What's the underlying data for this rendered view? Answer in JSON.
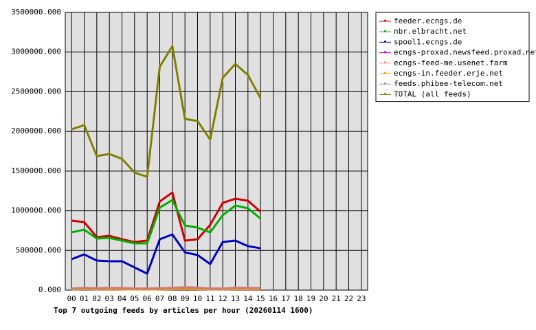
{
  "chart_data": {
    "type": "line",
    "title": "Top 7 outgoing feeds by articles per hour (20260114 1600)",
    "categories": [
      "00",
      "01",
      "02",
      "03",
      "04",
      "05",
      "06",
      "07",
      "08",
      "09",
      "10",
      "11",
      "12",
      "13",
      "14",
      "15",
      "16",
      "17",
      "18",
      "19",
      "20",
      "21",
      "22",
      "23"
    ],
    "ylim": [
      0,
      3500000
    ],
    "yticks": [
      {
        "value": 0,
        "label": "0.000"
      },
      {
        "value": 500000,
        "label": "500000.000"
      },
      {
        "value": 1000000,
        "label": "1000000.000"
      },
      {
        "value": 1500000,
        "label": "1500000.000"
      },
      {
        "value": 2000000,
        "label": "2000000.000"
      },
      {
        "value": 2500000,
        "label": "2500000.000"
      },
      {
        "value": 3000000,
        "label": "3000000.000"
      },
      {
        "value": 3500000,
        "label": "3500000.000"
      }
    ],
    "grid": true,
    "legend": "right",
    "series": [
      {
        "name": "feeder.ecngs.de",
        "color": "#cc0000",
        "values": [
          875000,
          858000,
          667000,
          684000,
          641000,
          606000,
          624000,
          1117000,
          1230000,
          624000,
          641000,
          823000,
          1100000,
          1152000,
          1126000,
          988000,
          null,
          null,
          null,
          null,
          null,
          null,
          null,
          null
        ]
      },
      {
        "name": "nbr.elbracht.net",
        "color": "#00b000",
        "values": [
          728000,
          762000,
          650000,
          658000,
          624000,
          589000,
          589000,
          1040000,
          1135000,
          814000,
          788000,
          728000,
          944000,
          1066000,
          1031000,
          901000,
          null,
          null,
          null,
          null,
          null,
          null,
          null,
          null
        ]
      },
      {
        "name": "spool1.ecngs.de",
        "color": "#0000c0",
        "values": [
          390000,
          450000,
          372000,
          364000,
          364000,
          286000,
          208000,
          641000,
          702000,
          476000,
          442000,
          329000,
          606000,
          624000,
          554000,
          528000,
          null,
          null,
          null,
          null,
          null,
          null,
          null,
          null
        ]
      },
      {
        "name": "ecngs-proxad.newsfeed.proxad.net",
        "color": "#c000c0",
        "values": [
          15000,
          20000,
          15000,
          18000,
          15000,
          12000,
          12000,
          15000,
          20000,
          25000,
          20000,
          15000,
          15000,
          18000,
          18000,
          18000,
          null,
          null,
          null,
          null,
          null,
          null,
          null,
          null
        ]
      },
      {
        "name": "ecngs-feed-me.usenet.farm",
        "color": "#ff8080",
        "values": [
          20000,
          30000,
          25000,
          30000,
          28000,
          22000,
          22000,
          25000,
          30000,
          38000,
          32000,
          22000,
          22000,
          30000,
          30000,
          28000,
          null,
          null,
          null,
          null,
          null,
          null,
          null,
          null
        ]
      },
      {
        "name": "ecngs-in.feeder.erje.net",
        "color": "#ff9900",
        "values": [
          10000,
          12000,
          10000,
          12000,
          10000,
          8000,
          8000,
          10000,
          12000,
          15000,
          12000,
          10000,
          10000,
          12000,
          12000,
          12000,
          null,
          null,
          null,
          null,
          null,
          null,
          null,
          null
        ]
      },
      {
        "name": "feeds.phibee-telecom.net",
        "color": "#c08080",
        "values": [
          18000,
          25000,
          20000,
          25000,
          22000,
          18000,
          18000,
          20000,
          25000,
          32000,
          28000,
          18000,
          18000,
          25000,
          25000,
          25000,
          null,
          null,
          null,
          null,
          null,
          null,
          null,
          null
        ]
      },
      {
        "name": "TOTAL (all feeds)",
        "color": "#808000",
        "values": [
          2027000,
          2079000,
          1689000,
          1715000,
          1655000,
          1481000,
          1429000,
          2815000,
          3075000,
          2157000,
          2131000,
          1897000,
          2677000,
          2850000,
          2711000,
          2417000,
          null,
          null,
          null,
          null,
          null,
          null,
          null,
          null
        ]
      }
    ]
  }
}
